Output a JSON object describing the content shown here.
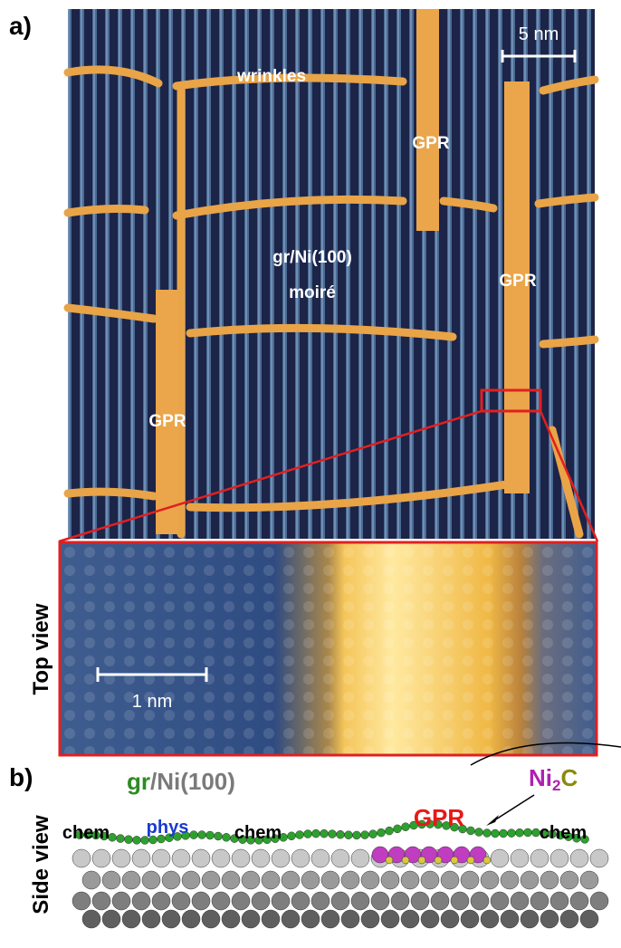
{
  "panel_a": {
    "label": "a)",
    "scale_bar": "5 nm",
    "annotations": [
      "wrinkles",
      "GPR",
      "GPR",
      "GPR",
      "gr/Ni(100)",
      "moiré"
    ]
  },
  "inset": {
    "side_label": "Top view",
    "scale_bar": "1 nm"
  },
  "panel_b": {
    "label": "b)",
    "side_label": "Side view",
    "title_parts": [
      "gr",
      "/Ni(100)"
    ],
    "ni2c_parts": [
      "Ni",
      "2",
      "C"
    ],
    "gpr": "GPR",
    "regions": [
      "chem",
      "phys",
      "chem",
      "chem"
    ]
  }
}
